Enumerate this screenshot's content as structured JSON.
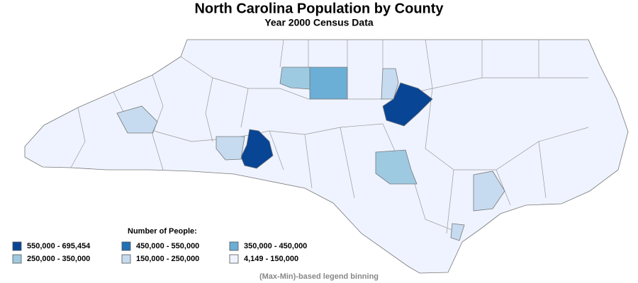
{
  "header": {
    "title": "North Carolina Population by County",
    "subtitle": "Year 2000 Census Data"
  },
  "legend": {
    "title": "Number of People:",
    "items": [
      {
        "label": "550,000 - 695,454",
        "color": "#084594"
      },
      {
        "label": "450,000 - 550,000",
        "color": "#2171b5"
      },
      {
        "label": "350,000 - 450,000",
        "color": "#6baed6"
      },
      {
        "label": "250,000 - 350,000",
        "color": "#9ecae1"
      },
      {
        "label": "150,000 - 250,000",
        "color": "#c6dbef"
      },
      {
        "label": "4,149 - 150,000",
        "color": "#eff3ff"
      }
    ]
  },
  "footnote": "(Max-Min)-based legend binning"
}
